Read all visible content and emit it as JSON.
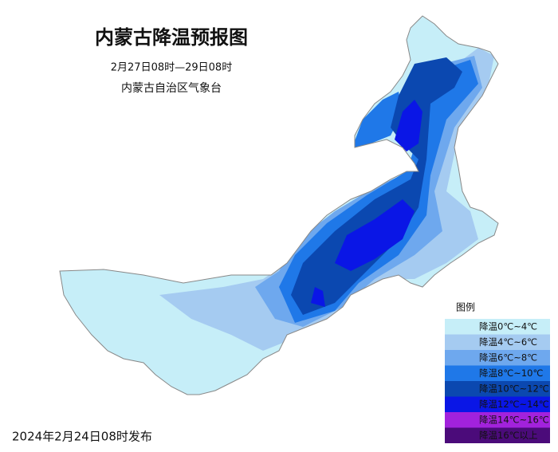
{
  "header": {
    "title": "内蒙古降温预报图",
    "period": "2月27日08时—29日08时",
    "issuer": "内蒙古自治区气象台"
  },
  "legend": {
    "title": "图例",
    "items": [
      {
        "label": "降温0℃~4℃",
        "color": "#c6eef8"
      },
      {
        "label": "降温4℃~6℃",
        "color": "#a5cbf1"
      },
      {
        "label": "降温6℃~8℃",
        "color": "#6ea8ee"
      },
      {
        "label": "降温8℃~10℃",
        "color": "#1f78e8"
      },
      {
        "label": "降温10℃~12℃",
        "color": "#0b48b0"
      },
      {
        "label": "降温12℃~14℃",
        "color": "#0a16e6"
      },
      {
        "label": "降温14℃~16℃",
        "color": "#a222dc"
      },
      {
        "label": "降温16℃以上",
        "color": "#4b0b7a"
      }
    ]
  },
  "footer": {
    "issued": "2024年2月24日08时发布"
  }
}
